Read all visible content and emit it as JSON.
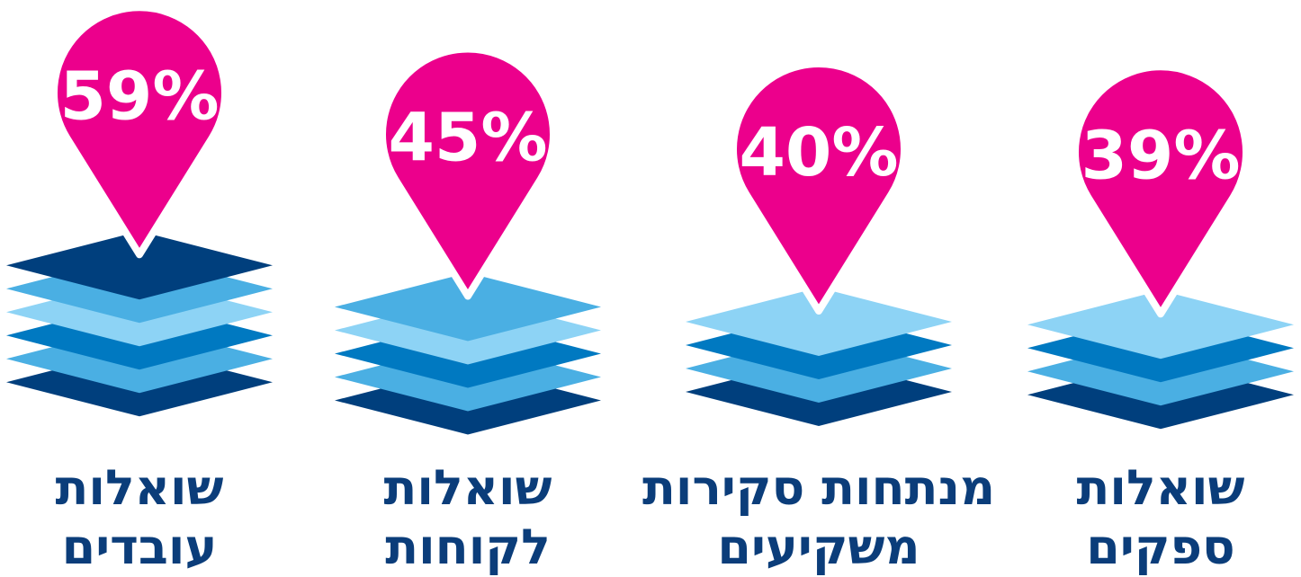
{
  "chart_data": {
    "type": "pictogram",
    "categories": [
      "שואלות\nעובדים",
      "שואלות\nלקוחות",
      "מנתחות סקירות\nמשקיעים",
      "שואלות\nספקים"
    ],
    "values": [
      59,
      45,
      40,
      39
    ],
    "value_labels": [
      "59%",
      "45%",
      "40%",
      "39%"
    ],
    "color": "#ec008c",
    "layer_colors": [
      "#003f7d",
      "#4aafe3",
      "#8dd3f5",
      "#0079c1",
      "#4aafe3",
      "#003f7d"
    ]
  }
}
